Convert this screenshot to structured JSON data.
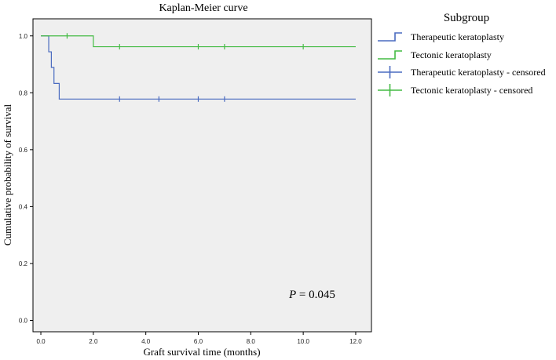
{
  "chart_data": {
    "type": "line",
    "subtype": "step",
    "title": "Kaplan-Meier curve",
    "xlabel": "Graft survival time (months)",
    "ylabel": "Cumulative probability of survival",
    "xlim": [
      -0.3,
      12.6
    ],
    "ylim": [
      -0.04,
      1.06
    ],
    "x_ticks": [
      0,
      2,
      4,
      6,
      8,
      10,
      12
    ],
    "x_tick_labels": [
      "0.0",
      "2.0",
      "4.0",
      "6.0",
      "8.0",
      "10.0",
      "12.0"
    ],
    "y_ticks": [
      0,
      0.2,
      0.4,
      0.6,
      0.8,
      1.0
    ],
    "y_tick_labels": [
      "0.0",
      "0.2",
      "0.4",
      "0.6",
      "0.8",
      "1.0"
    ],
    "grid": false,
    "plot_background": "#efefef",
    "legend": {
      "title": "Subgroup",
      "placement": "right-outside",
      "entries": [
        "Therapeutic keratoplasty",
        "Tectonic keratoplasty",
        "Therapeutic keratoplasty - censored",
        "Tectonic keratoplasty - censored"
      ]
    },
    "annotation": {
      "italic": "P",
      "rest": " = 0.045"
    },
    "series": [
      {
        "name": "Therapeutic keratoplasty",
        "color": "#4a6bc0",
        "steps": [
          [
            0,
            1.0
          ],
          [
            0.3,
            0.944
          ],
          [
            0.4,
            0.889
          ],
          [
            0.5,
            0.833
          ],
          [
            0.7,
            0.778
          ],
          [
            12,
            0.778
          ]
        ],
        "censored": [
          [
            3.0,
            0.778
          ],
          [
            4.5,
            0.778
          ],
          [
            6.0,
            0.778
          ],
          [
            7.0,
            0.778
          ]
        ]
      },
      {
        "name": "Tectonic keratoplasty",
        "color": "#44bb44",
        "steps": [
          [
            0,
            1.0
          ],
          [
            2.0,
            0.962
          ],
          [
            12,
            0.962
          ]
        ],
        "censored": [
          [
            1.0,
            1.0
          ],
          [
            3.0,
            0.962
          ],
          [
            6.0,
            0.962
          ],
          [
            7.0,
            0.962
          ],
          [
            10.0,
            0.962
          ]
        ]
      }
    ]
  }
}
